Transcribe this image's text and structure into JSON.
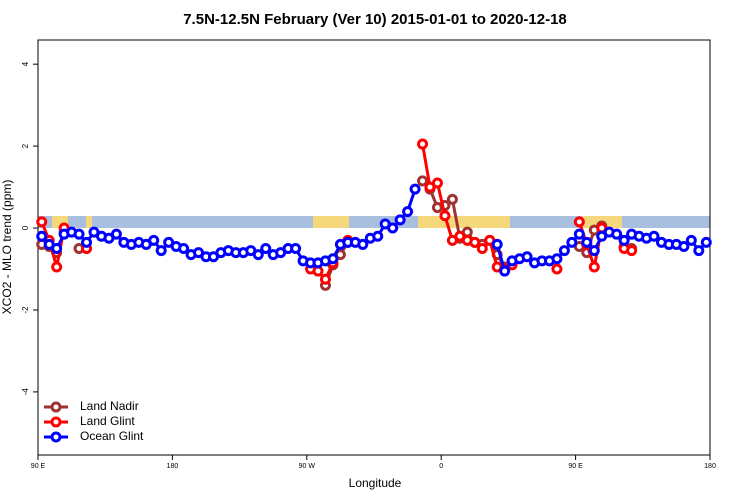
{
  "chart_data": {
    "type": "line",
    "title": "7.5N-12.5N February (Ver 10)   2015-01-01 to 2020-12-18",
    "x_label": "Longitude",
    "y_label": "XCO2 - MLO trend (ppm)",
    "xlim": [
      90,
      540
    ],
    "ylim": [
      -5.54,
      4.59
    ],
    "xticks": [
      {
        "value": 90,
        "label": "90 E"
      },
      180,
      {
        "value": 270,
        "label": "90 W"
      },
      {
        "value": 360,
        "label": "0"
      },
      {
        "value": 450,
        "label": "90 E"
      },
      {
        "value": 540,
        "label": "180"
      }
    ],
    "yticks": [
      -4,
      -2,
      0,
      2,
      4
    ],
    "legend": "bottomleft",
    "x": [
      92.5,
      97.5,
      102.5,
      107.5,
      112.5,
      117.5,
      122.5,
      127.5,
      132.5,
      137.5,
      142.5,
      147.5,
      152.5,
      157.5,
      162.5,
      167.5,
      172.5,
      177.5,
      182.5,
      187.5,
      192.5,
      197.5,
      202.5,
      207.5,
      212.5,
      217.5,
      222.5,
      227.5,
      232.5,
      237.5,
      242.5,
      247.5,
      252.5,
      257.5,
      262.5,
      267.5,
      272.5,
      277.5,
      282.5,
      287.5,
      292.5,
      297.5,
      302.5,
      307.5,
      312.5,
      317.5,
      322.5,
      327.5,
      332.5,
      337.5,
      342.5,
      347.5,
      352.5,
      357.5,
      362.5,
      367.5,
      372.5,
      377.5,
      382.5,
      387.5,
      392.5,
      397.5,
      402.5,
      407.5,
      412.5,
      417.5,
      422.5,
      427.5,
      432.5,
      437.5,
      442.5,
      447.5,
      452.5,
      457.5,
      462.5,
      467.5,
      472.5,
      477.5,
      482.5,
      487.5,
      492.5,
      497.5,
      502.5,
      507.5,
      512.5,
      517.5,
      522.5,
      527.5,
      532.5,
      537.5
    ],
    "series": [
      {
        "name": "Land Nadir",
        "color": "#a03232",
        "values": [
          -0.4,
          -0.45,
          -0.6,
          -0.1,
          null,
          -0.5,
          -0.5,
          null,
          null,
          null,
          null,
          null,
          null,
          null,
          null,
          null,
          null,
          null,
          null,
          null,
          null,
          null,
          null,
          null,
          null,
          null,
          null,
          null,
          null,
          null,
          null,
          null,
          null,
          null,
          null,
          null,
          null,
          null,
          -1.4,
          -0.9,
          -0.65,
          -0.35,
          null,
          null,
          null,
          null,
          null,
          null,
          null,
          null,
          null,
          1.15,
          0.95,
          0.5,
          0.55,
          0.7,
          -0.25,
          -0.1,
          -0.35,
          -0.4,
          -0.3,
          -0.65,
          -0.95,
          -0.8,
          null,
          null,
          null,
          null,
          null,
          null,
          null,
          null,
          -0.45,
          -0.6,
          -0.05,
          0.05,
          null,
          null,
          -0.45,
          -0.5,
          null,
          null,
          null,
          null,
          null,
          null,
          null,
          null,
          null,
          null
        ]
      },
      {
        "name": "Land Glint",
        "color": "#ff0000",
        "values": [
          0.15,
          -0.3,
          -0.95,
          0.0,
          null,
          null,
          -0.5,
          null,
          null,
          null,
          null,
          null,
          null,
          null,
          null,
          null,
          null,
          null,
          null,
          null,
          null,
          null,
          null,
          null,
          null,
          null,
          null,
          null,
          null,
          null,
          null,
          null,
          null,
          null,
          null,
          null,
          -1.0,
          -1.05,
          -1.25,
          -0.85,
          null,
          -0.3,
          null,
          null,
          null,
          null,
          null,
          null,
          null,
          null,
          null,
          2.05,
          1.0,
          1.1,
          0.3,
          -0.3,
          -0.2,
          -0.3,
          -0.35,
          -0.5,
          -0.3,
          -0.95,
          -1.0,
          -0.9,
          null,
          null,
          null,
          null,
          null,
          -1.0,
          null,
          null,
          0.15,
          -0.4,
          -0.95,
          0.0,
          null,
          null,
          -0.5,
          -0.55,
          null,
          null,
          null,
          null,
          null,
          null,
          null,
          null,
          null,
          null
        ]
      },
      {
        "name": "Ocean Glint",
        "color": "#0000ff",
        "values": [
          -0.2,
          -0.4,
          -0.5,
          -0.15,
          -0.1,
          -0.15,
          -0.35,
          -0.1,
          -0.2,
          -0.25,
          -0.15,
          -0.35,
          -0.4,
          -0.35,
          -0.4,
          -0.3,
          -0.55,
          -0.35,
          -0.45,
          -0.5,
          -0.65,
          -0.6,
          -0.7,
          -0.7,
          -0.6,
          -0.55,
          -0.6,
          -0.6,
          -0.55,
          -0.65,
          -0.5,
          -0.65,
          -0.6,
          -0.5,
          -0.5,
          -0.8,
          -0.85,
          -0.85,
          -0.8,
          -0.75,
          -0.4,
          -0.35,
          -0.35,
          -0.4,
          -0.25,
          -0.2,
          0.1,
          0.0,
          0.2,
          0.4,
          0.95,
          null,
          null,
          null,
          null,
          null,
          null,
          null,
          null,
          null,
          null,
          -0.4,
          -1.05,
          -0.8,
          -0.75,
          -0.7,
          -0.85,
          -0.8,
          -0.8,
          -0.75,
          -0.55,
          -0.35,
          -0.15,
          -0.35,
          -0.55,
          -0.2,
          -0.1,
          -0.15,
          -0.3,
          -0.15,
          -0.2,
          -0.25,
          -0.2,
          -0.35,
          -0.4,
          -0.4,
          -0.45,
          -0.3,
          -0.55,
          -0.35
        ]
      }
    ]
  }
}
